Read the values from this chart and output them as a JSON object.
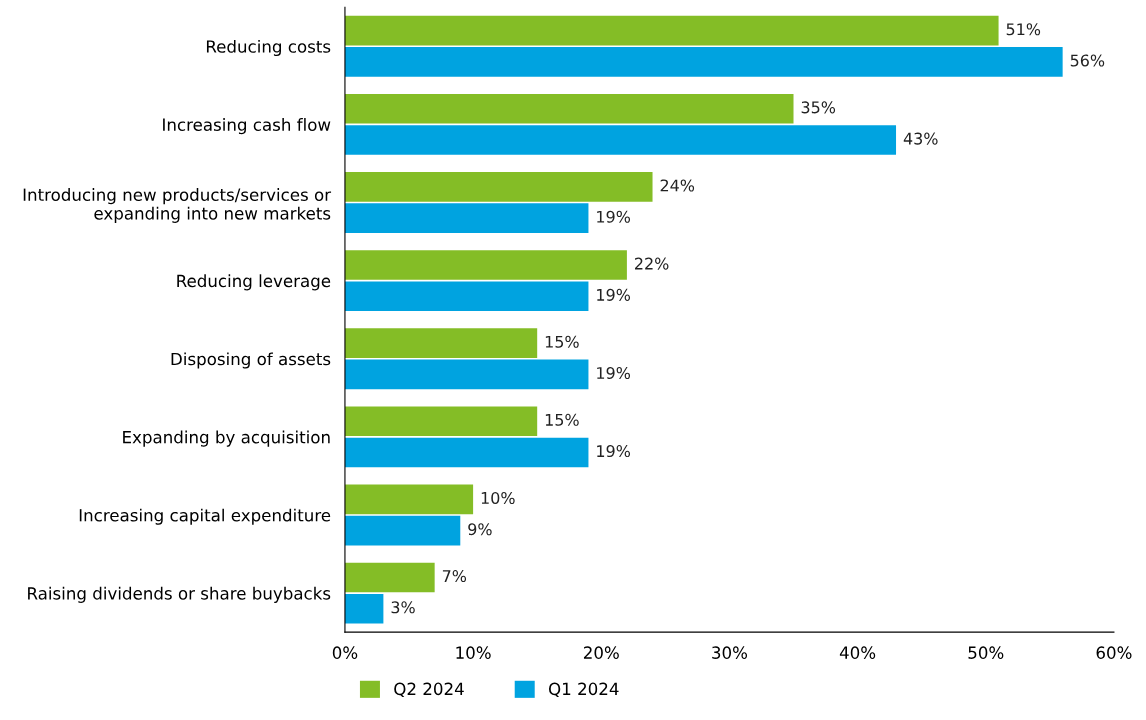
{
  "chart_data": {
    "type": "bar",
    "orientation": "horizontal",
    "categories": [
      "Reducing costs",
      "Increasing cash flow",
      "Introducing new products/services or\nexpanding into new markets",
      "Reducing leverage",
      "Disposing of assets",
      "Expanding by acquisition",
      "Increasing capital expenditure",
      "Raising dividends or share buybacks"
    ],
    "series": [
      {
        "name": "Q2 2024",
        "color": "#84bd26",
        "values": [
          51,
          35,
          24,
          22,
          15,
          15,
          10,
          7
        ],
        "value_labels": [
          "51%",
          "35%",
          "24%",
          "22%",
          "15%",
          "15%",
          "10%",
          "7%"
        ]
      },
      {
        "name": "Q1 2024",
        "color": "#00a3e0",
        "values": [
          56,
          43,
          19,
          19,
          19,
          19,
          9,
          3
        ],
        "value_labels": [
          "56%",
          "43%",
          "19%",
          "19%",
          "19%",
          "19%",
          "9%",
          "3%"
        ]
      }
    ],
    "xlim": [
      0,
      60
    ],
    "xticks": [
      {
        "value": 0,
        "label": "0%"
      },
      {
        "value": 10,
        "label": "10%"
      },
      {
        "value": 20,
        "label": "20%"
      },
      {
        "value": 30,
        "label": "30%"
      },
      {
        "value": 40,
        "label": "40%"
      },
      {
        "value": 50,
        "label": "50%"
      },
      {
        "value": 60,
        "label": "60%"
      }
    ],
    "legend": "bottom",
    "grid": false
  }
}
